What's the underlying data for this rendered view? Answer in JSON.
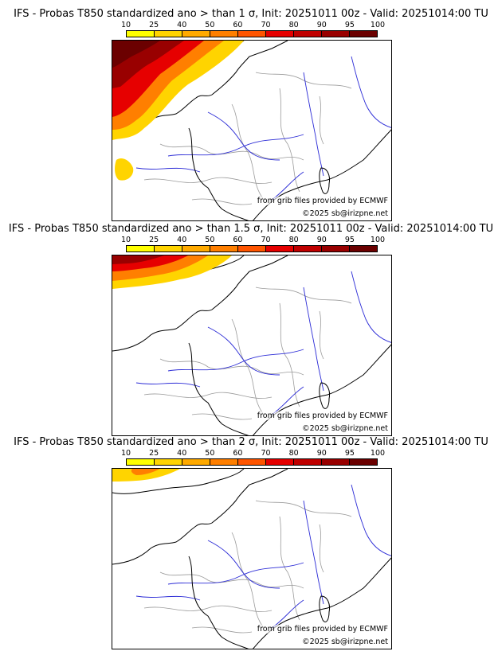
{
  "panels": [
    {
      "title": "IFS - Probas T850  standardized ano > than 1 σ, Init: 20251011 00z - Valid: 20251014:00 TU",
      "level": "1",
      "extent": "large"
    },
    {
      "title": "IFS - Probas T850  standardized ano > than 1.5 σ, Init: 20251011 00z - Valid: 20251014:00 TU",
      "level": "1.5",
      "extent": "medium"
    },
    {
      "title": "IFS - Probas T850  standardized ano > than 2 σ, Init: 20251011 00z - Valid: 20251014:00 TU",
      "level": "2",
      "extent": "small"
    }
  ],
  "colorbar": {
    "ticks": [
      "10",
      "25",
      "40",
      "50",
      "60",
      "70",
      "80",
      "90",
      "95",
      "100"
    ],
    "colors": [
      "#ffff00",
      "#ffd400",
      "#ffaa00",
      "#ff7f00",
      "#ff5500",
      "#e60000",
      "#c00000",
      "#990000",
      "#6b0000"
    ]
  },
  "credits": {
    "source": "from grib files provided by ECMWF",
    "copyright": "©2025 sb@irizpne.net"
  }
}
